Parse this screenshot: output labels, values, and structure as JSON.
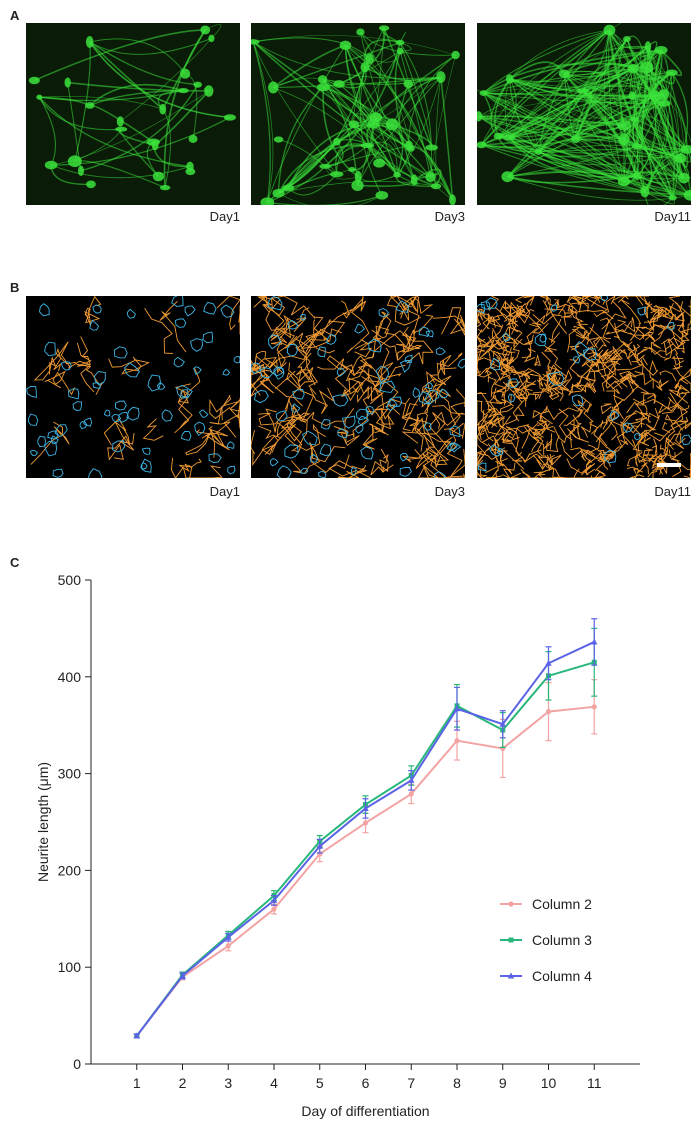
{
  "figure": {
    "panels": [
      {
        "letter": "A",
        "captions": [
          "Day1",
          "Day3",
          "Day11"
        ]
      },
      {
        "letter": "B",
        "captions": [
          "Day1",
          "Day3",
          "Day11"
        ]
      },
      {
        "letter": "C"
      }
    ]
  },
  "colors": {
    "fluorescence": "#3be23b",
    "background_green": "#0a1c07",
    "trace_soma": "#3db6e6",
    "trace_neurite": "#ef9a33",
    "scale_bar": "#ffffff"
  },
  "chart_data": {
    "type": "line",
    "xlabel": "Day of differentiation",
    "ylabel": "Neurite length (μm)",
    "x": [
      1,
      2,
      3,
      4,
      5,
      6,
      7,
      8,
      9,
      10,
      11
    ],
    "xlim": [
      0,
      12
    ],
    "ylim": [
      0,
      500
    ],
    "yticks": [
      0,
      100,
      200,
      300,
      400,
      500
    ],
    "legend_position": "bottom-right",
    "series": [
      {
        "name": "Column 2",
        "color": "#f4a3a3",
        "marker": "circle",
        "values": [
          29,
          90,
          122,
          160,
          217,
          249,
          279,
          334,
          326,
          364,
          369
        ],
        "errors": [
          2,
          3,
          5,
          5,
          8,
          10,
          10,
          20,
          30,
          30,
          28
        ]
      },
      {
        "name": "Column 3",
        "color": "#27b77a",
        "marker": "square",
        "values": [
          29,
          92,
          133,
          174,
          230,
          268,
          298,
          370,
          345,
          401,
          415
        ],
        "errors": [
          2,
          3,
          4,
          5,
          6,
          9,
          10,
          22,
          18,
          25,
          35
        ]
      },
      {
        "name": "Column 4",
        "color": "#5a62e6",
        "marker": "triangle",
        "values": [
          29,
          91,
          131,
          169,
          225,
          264,
          293,
          367,
          351,
          414,
          436
        ],
        "errors": [
          2,
          3,
          4,
          5,
          7,
          10,
          10,
          22,
          14,
          17,
          24
        ]
      }
    ]
  }
}
